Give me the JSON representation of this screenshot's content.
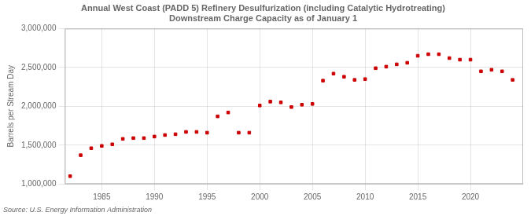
{
  "chart_data": {
    "type": "scatter",
    "title": "Annual West Coast (PADD 5) Refinery Desulfurization (including Catalytic Hydrotreating)\nDownstream Charge Capacity as of January 1",
    "ylabel": "Barrels per Stream Day",
    "source": "Source: U.S. Energy Information Administration",
    "color": "#cc0000",
    "marker": "square",
    "grid": true,
    "x": [
      1982,
      1983,
      1984,
      1985,
      1986,
      1987,
      1988,
      1989,
      1990,
      1991,
      1992,
      1993,
      1994,
      1995,
      1996,
      1997,
      1998,
      1999,
      2000,
      2001,
      2002,
      2003,
      2004,
      2005,
      2006,
      2007,
      2008,
      2009,
      2010,
      2011,
      2012,
      2013,
      2014,
      2015,
      2016,
      2017,
      2018,
      2019,
      2020,
      2021,
      2022,
      2023,
      2024
    ],
    "values": [
      1100000,
      1370000,
      1460000,
      1490000,
      1510000,
      1580000,
      1590000,
      1590000,
      1610000,
      1630000,
      1640000,
      1670000,
      1670000,
      1660000,
      1870000,
      1920000,
      1660000,
      1660000,
      2010000,
      2060000,
      2050000,
      1990000,
      2020000,
      2030000,
      2330000,
      2420000,
      2380000,
      2340000,
      2350000,
      2490000,
      2510000,
      2540000,
      2560000,
      2650000,
      2670000,
      2670000,
      2620000,
      2600000,
      2600000,
      2450000,
      2470000,
      2450000,
      2340000
    ],
    "xlim": [
      1981.5,
      2025
    ],
    "xticks": [
      1985,
      1990,
      1995,
      2000,
      2005,
      2010,
      2015,
      2020
    ],
    "ylim": [
      1000000,
      3000000
    ],
    "yticks": [
      {
        "value": 1000000,
        "label": "1,000,000"
      },
      {
        "value": 1500000,
        "label": "1,500,000"
      },
      {
        "value": 2000000,
        "label": "2,000,000"
      },
      {
        "value": 2500000,
        "label": "2,500,000"
      },
      {
        "value": 3000000,
        "label": "3,000,000"
      }
    ]
  }
}
